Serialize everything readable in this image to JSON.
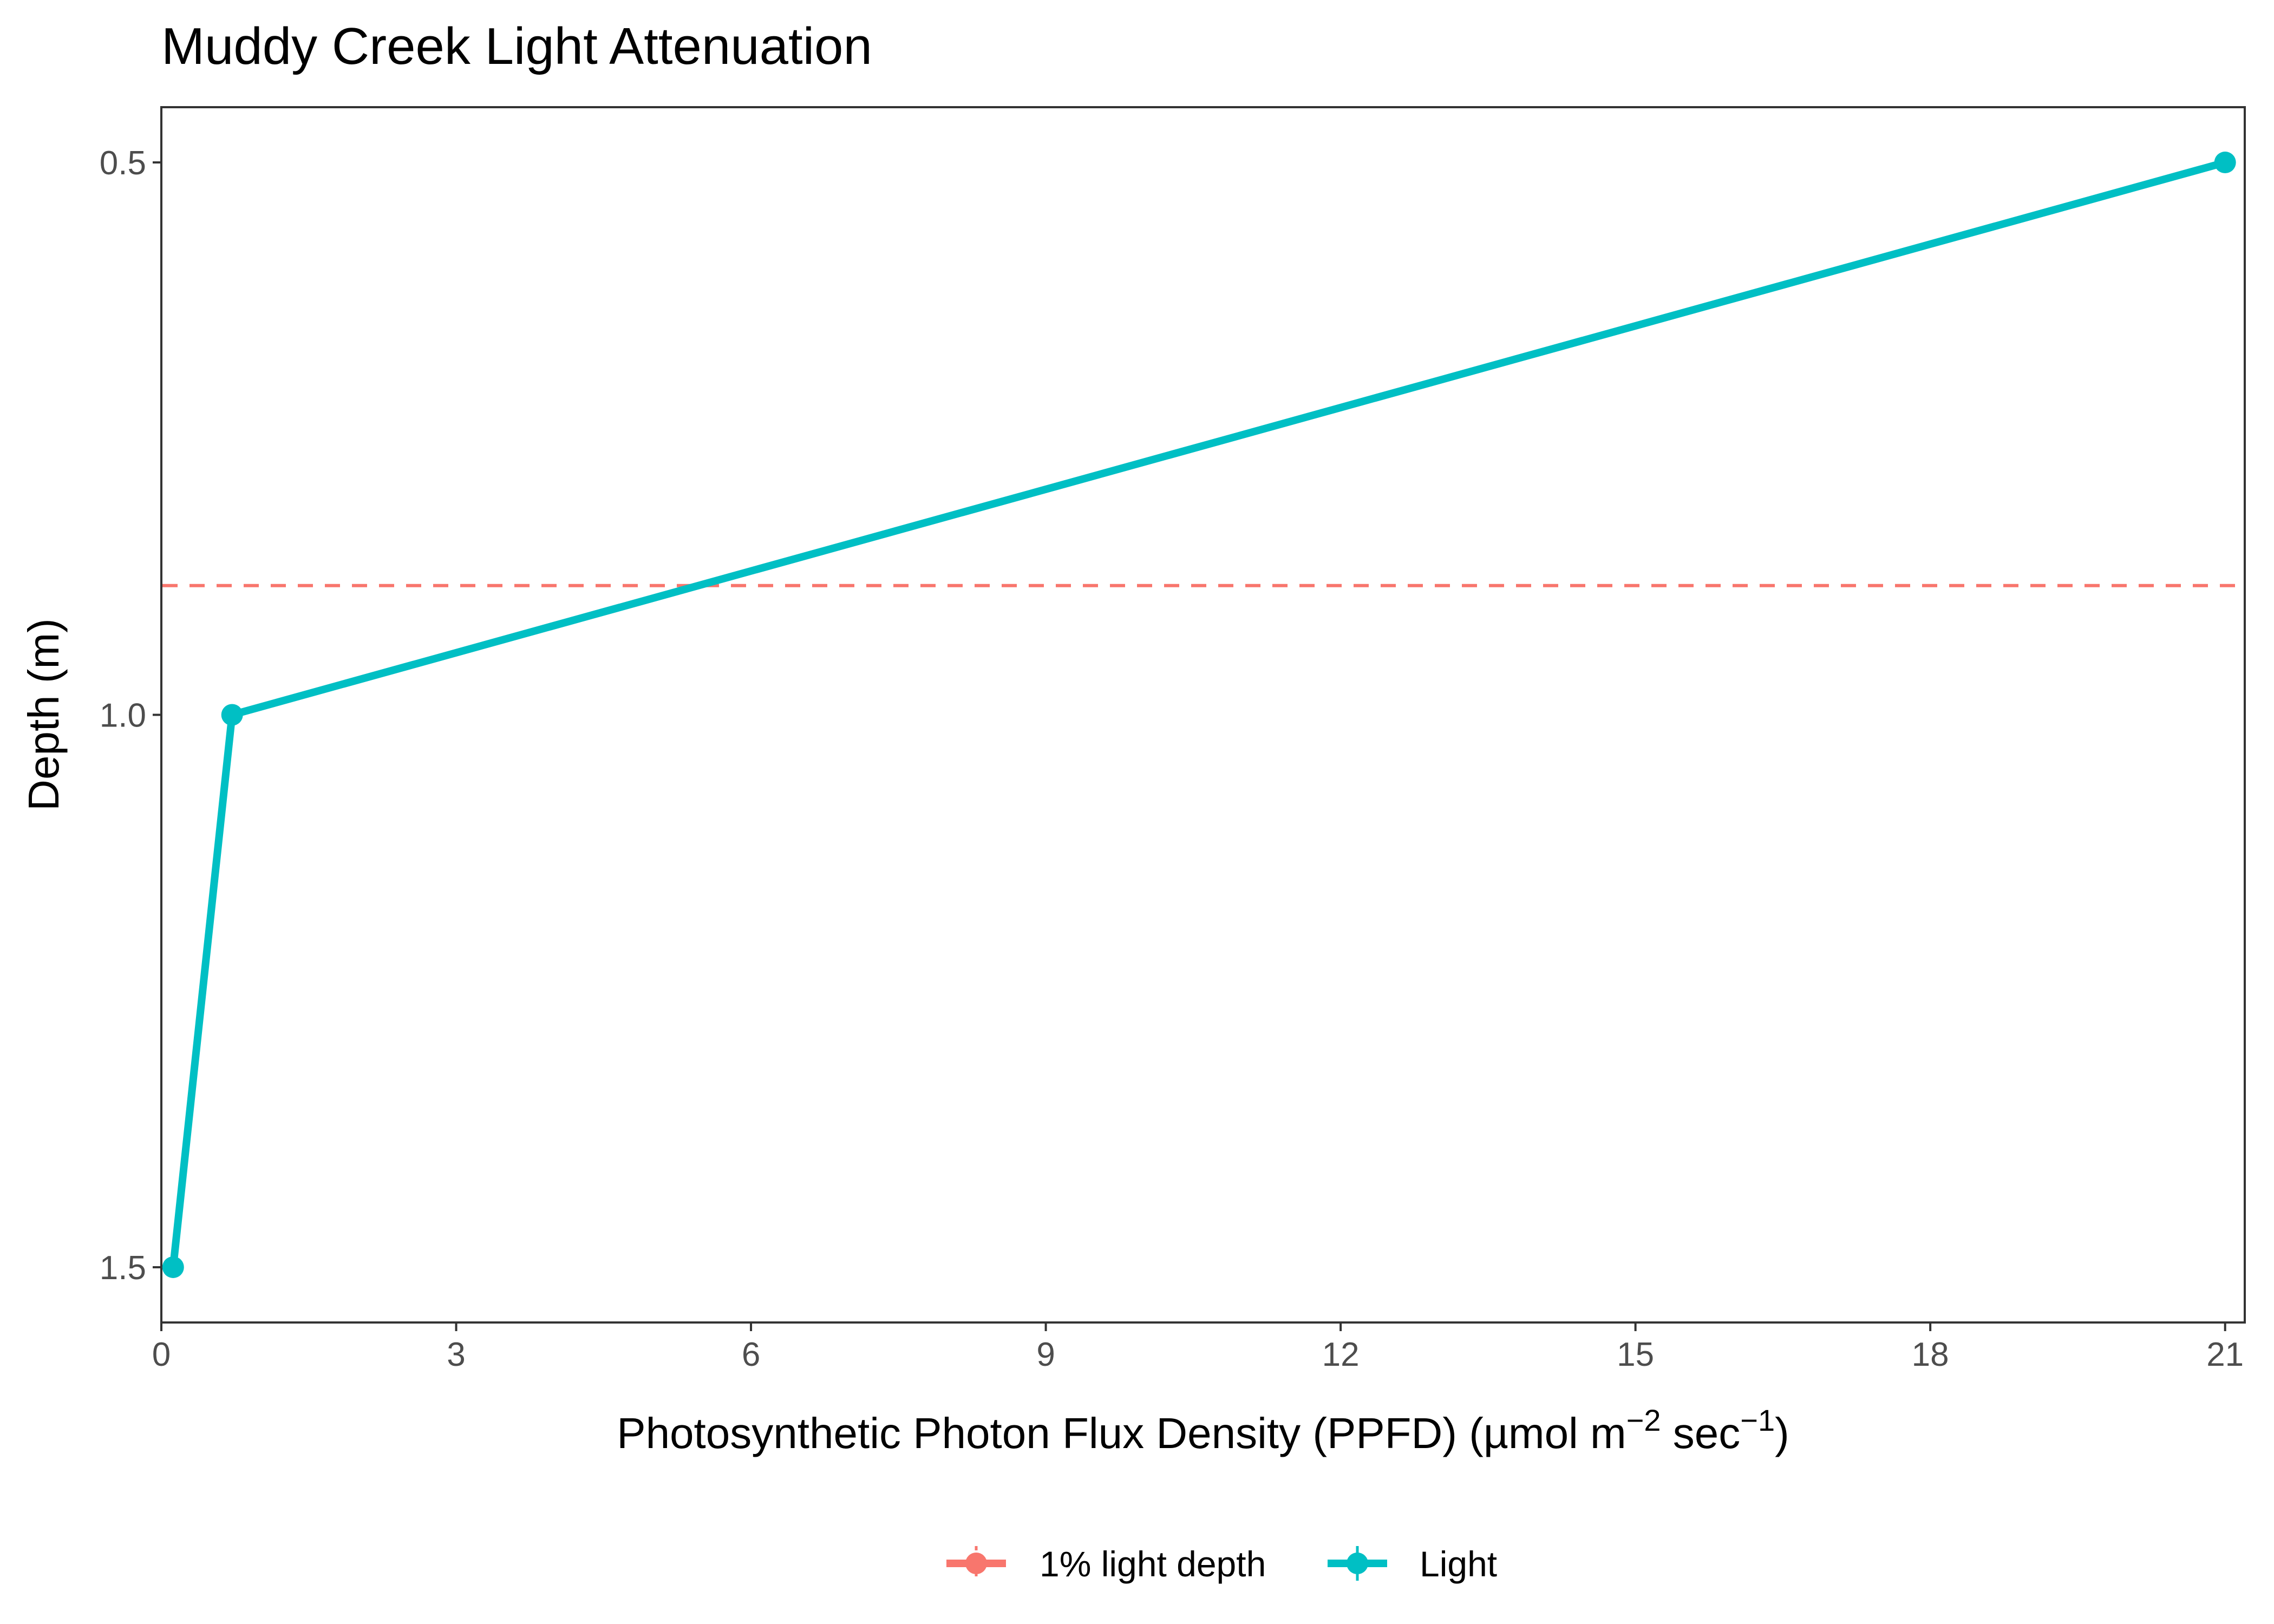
{
  "chart_data": {
    "type": "line",
    "title": "Muddy Creek Light Attenuation",
    "xlabel": {
      "base": "Photosynthetic Photon Flux Density (PPFD) (µmol m",
      "sup1": "−2",
      "mid": " sec",
      "sup2": "−1",
      "end": ")"
    },
    "ylabel": "Depth (m)",
    "xlim": [
      0,
      21.2
    ],
    "ylim": [
      1.55,
      0.45
    ],
    "y_reversed": true,
    "x_ticks": [
      "0",
      "3",
      "6",
      "9",
      "12",
      "15",
      "18",
      "21"
    ],
    "y_ticks": [
      "0.5",
      "1.0",
      "1.5"
    ],
    "x_tick_values": [
      0,
      3,
      6,
      9,
      12,
      15,
      18,
      21
    ],
    "y_tick_values": [
      0.5,
      1.0,
      1.5
    ],
    "series": [
      {
        "name": "Light",
        "color": "#00BFC4",
        "points": [
          {
            "x": 21.0,
            "y": 0.5
          },
          {
            "x": 0.72,
            "y": 1.0
          },
          {
            "x": 0.12,
            "y": 1.5
          }
        ]
      },
      {
        "name": "1% light depth",
        "color": "#F8766D",
        "style": "dashed-hline",
        "y": 0.883
      }
    ],
    "legend": {
      "position": "bottom",
      "items": [
        {
          "label": "1% light depth",
          "color": "#F8766D"
        },
        {
          "label": "Light",
          "color": "#00BFC4"
        }
      ]
    },
    "grid": false
  }
}
